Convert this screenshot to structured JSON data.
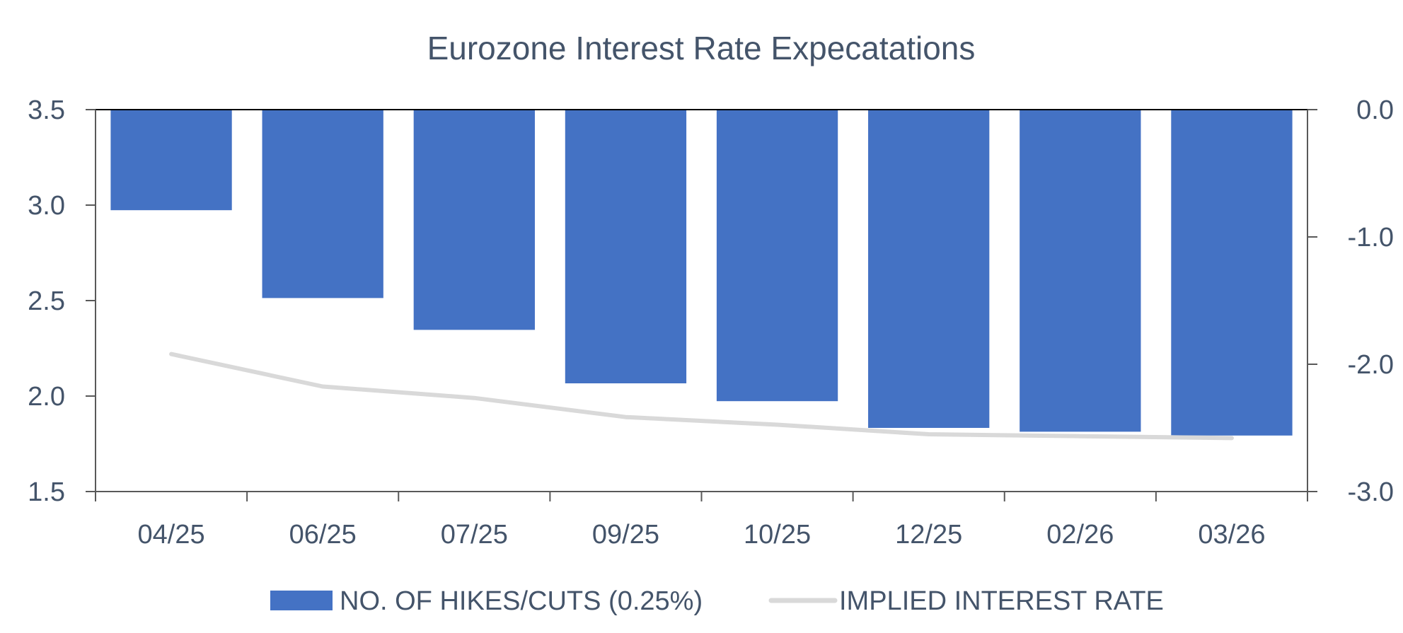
{
  "chart_data": {
    "type": "bar",
    "title": "Eurozone Interest Rate Expecatations",
    "categories": [
      "04/25",
      "06/25",
      "07/25",
      "09/25",
      "10/25",
      "12/25",
      "02/26",
      "03/26"
    ],
    "y_left": {
      "ylim": [
        1.5,
        3.5
      ],
      "ticks": [
        "1.5",
        "2.0",
        "2.5",
        "3.0",
        "3.5"
      ],
      "tick_values": [
        1.5,
        2.0,
        2.5,
        3.0,
        3.5
      ]
    },
    "y_right": {
      "ylim": [
        -3.0,
        0.0
      ],
      "ticks": [
        "0.0",
        "-1.0",
        "-2.0",
        "-3.0"
      ],
      "tick_values": [
        0.0,
        -1.0,
        -2.0,
        -3.0
      ]
    },
    "series": [
      {
        "name": "NO. OF HIKES/CUTS (0.25%)",
        "type": "bar",
        "axis": "right",
        "color": "#4472c4",
        "values": [
          -0.79,
          -1.48,
          -1.73,
          -2.15,
          -2.29,
          -2.5,
          -2.53,
          -2.56
        ]
      },
      {
        "name": "IMPLIED INTEREST RATE",
        "type": "line",
        "axis": "left",
        "color": "#d9d9d9",
        "values": [
          2.22,
          2.05,
          1.99,
          1.89,
          1.85,
          1.8,
          1.79,
          1.78
        ]
      }
    ],
    "legend": "bottom",
    "grid": false
  }
}
